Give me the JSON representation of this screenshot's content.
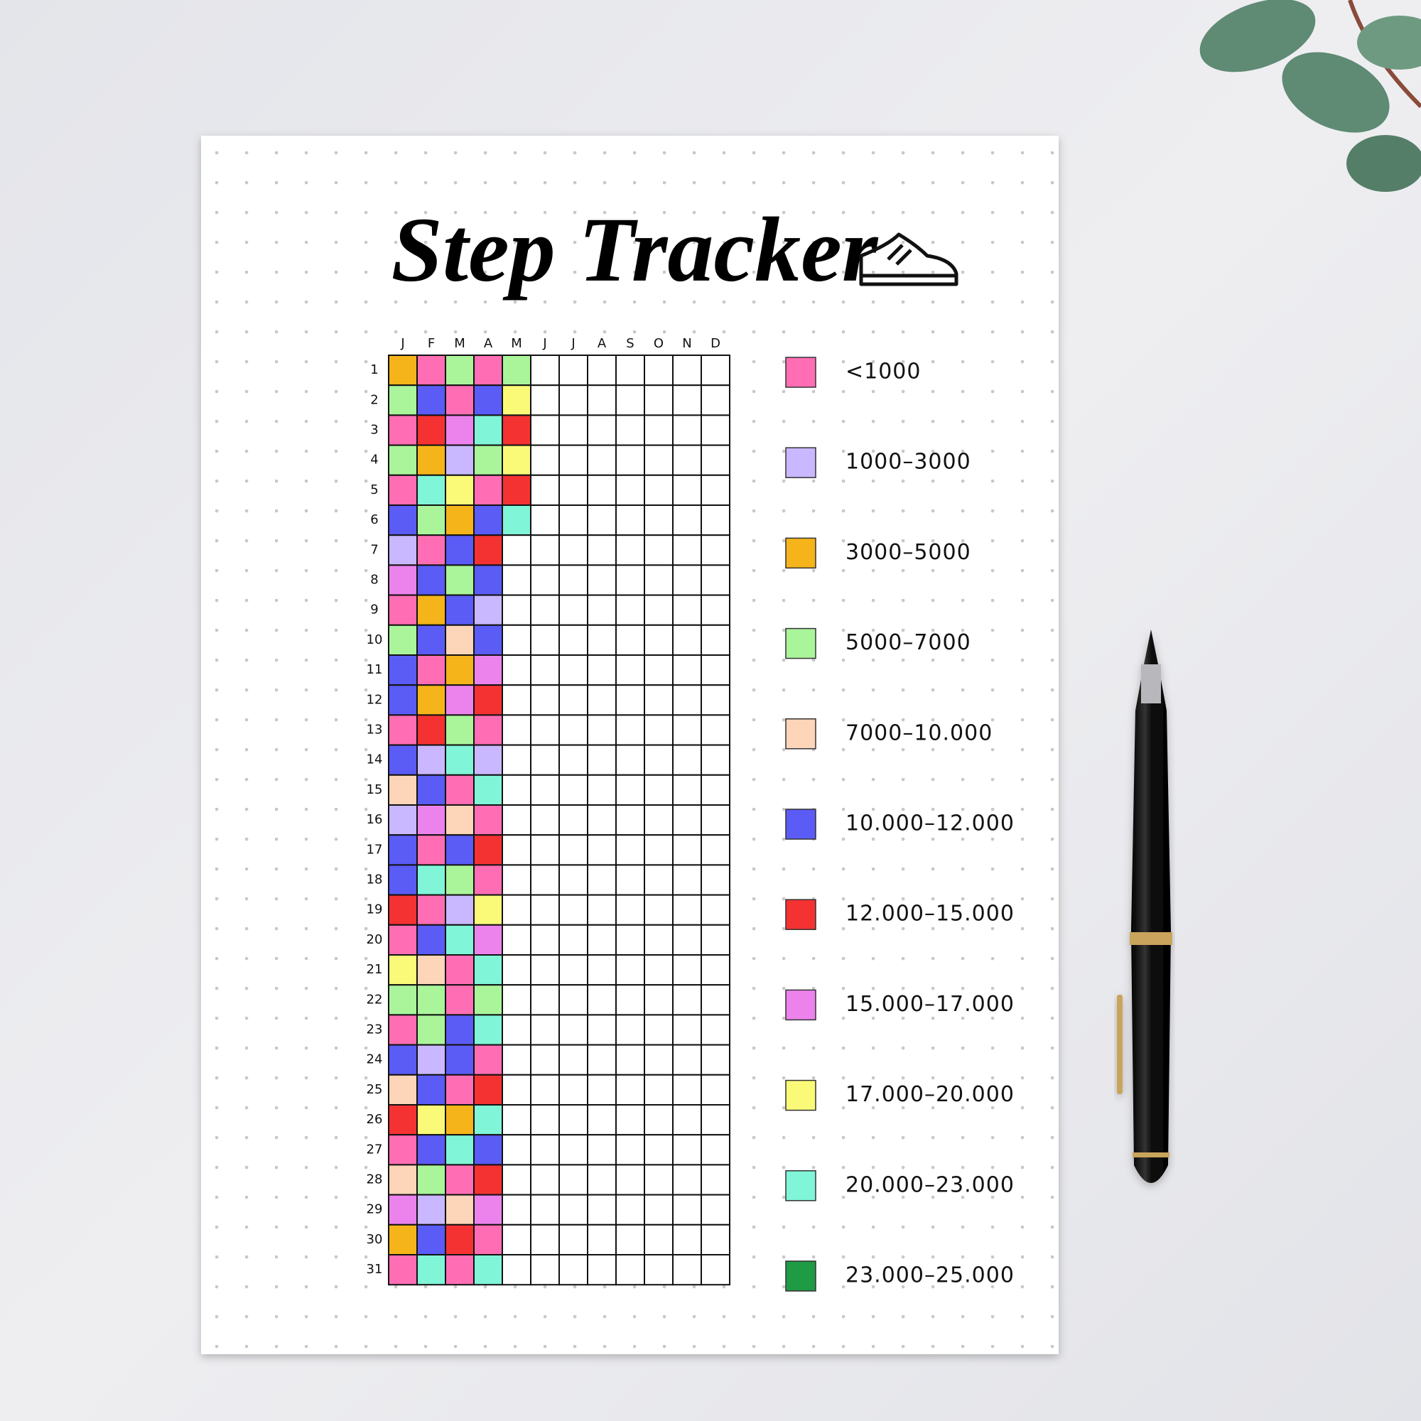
{
  "title": "Step Tracker",
  "months": [
    "J",
    "F",
    "M",
    "A",
    "M",
    "J",
    "J",
    "A",
    "S",
    "O",
    "N",
    "D"
  ],
  "days": [
    1,
    2,
    3,
    4,
    5,
    6,
    7,
    8,
    9,
    10,
    11,
    12,
    13,
    14,
    15,
    16,
    17,
    18,
    19,
    20,
    21,
    22,
    23,
    24,
    25,
    26,
    27,
    28,
    29,
    30,
    31
  ],
  "legend": [
    {
      "label": "<1000",
      "color": "#ff6eb4"
    },
    {
      "label": "1000–3000",
      "color": "#c9b8ff"
    },
    {
      "label": "3000–5000",
      "color": "#f5b41a"
    },
    {
      "label": "5000–7000",
      "color": "#aaf59a"
    },
    {
      "label": "7000–10.000",
      "color": "#fdd5b8"
    },
    {
      "label": "10.000–12.000",
      "color": "#5b5bf5"
    },
    {
      "label": "12.000–15.000",
      "color": "#f53232"
    },
    {
      "label": "15.000–17.000",
      "color": "#ec82ec"
    },
    {
      "label": "17.000–20.000",
      "color": "#fafa78"
    },
    {
      "label": "20.000–23.000",
      "color": "#80f5d8"
    },
    {
      "label": "23.000–25.000",
      "color": "#1f9a45"
    }
  ],
  "cells": [
    [
      "#f5b41a",
      "#ff6eb4",
      "#aaf59a",
      "#ff6eb4",
      "#aaf59a"
    ],
    [
      "#aaf59a",
      "#5b5bf5",
      "#ff6eb4",
      "#5b5bf5",
      "#fafa78"
    ],
    [
      "#ff6eb4",
      "#f53232",
      "#ec82ec",
      "#80f5d8",
      "#f53232"
    ],
    [
      "#aaf59a",
      "#f5b41a",
      "#c9b8ff",
      "#aaf59a",
      "#fafa78"
    ],
    [
      "#ff6eb4",
      "#80f5d8",
      "#fafa78",
      "#ff6eb4",
      "#f53232"
    ],
    [
      "#5b5bf5",
      "#aaf59a",
      "#f5b41a",
      "#5b5bf5",
      "#80f5d8"
    ],
    [
      "#c9b8ff",
      "#ff6eb4",
      "#5b5bf5",
      "#f53232"
    ],
    [
      "#ec82ec",
      "#5b5bf5",
      "#aaf59a",
      "#5b5bf5"
    ],
    [
      "#ff6eb4",
      "#f5b41a",
      "#5b5bf5",
      "#c9b8ff"
    ],
    [
      "#aaf59a",
      "#5b5bf5",
      "#fdd5b8",
      "#5b5bf5"
    ],
    [
      "#5b5bf5",
      "#ff6eb4",
      "#f5b41a",
      "#ec82ec"
    ],
    [
      "#5b5bf5",
      "#f5b41a",
      "#ec82ec",
      "#f53232"
    ],
    [
      "#ff6eb4",
      "#f53232",
      "#aaf59a",
      "#ff6eb4"
    ],
    [
      "#5b5bf5",
      "#c9b8ff",
      "#80f5d8",
      "#c9b8ff"
    ],
    [
      "#fdd5b8",
      "#5b5bf5",
      "#ff6eb4",
      "#80f5d8"
    ],
    [
      "#c9b8ff",
      "#ec82ec",
      "#fdd5b8",
      "#ff6eb4"
    ],
    [
      "#5b5bf5",
      "#ff6eb4",
      "#5b5bf5",
      "#f53232"
    ],
    [
      "#5b5bf5",
      "#80f5d8",
      "#aaf59a",
      "#ff6eb4"
    ],
    [
      "#f53232",
      "#ff6eb4",
      "#c9b8ff",
      "#fafa78"
    ],
    [
      "#ff6eb4",
      "#5b5bf5",
      "#80f5d8",
      "#ec82ec"
    ],
    [
      "#fafa78",
      "#fdd5b8",
      "#ff6eb4",
      "#80f5d8"
    ],
    [
      "#aaf59a",
      "#aaf59a",
      "#ff6eb4",
      "#aaf59a"
    ],
    [
      "#ff6eb4",
      "#aaf59a",
      "#5b5bf5",
      "#80f5d8"
    ],
    [
      "#5b5bf5",
      "#c9b8ff",
      "#5b5bf5",
      "#ff6eb4"
    ],
    [
      "#fdd5b8",
      "#5b5bf5",
      "#ff6eb4",
      "#f53232"
    ],
    [
      "#f53232",
      "#fafa78",
      "#f5b41a",
      "#80f5d8"
    ],
    [
      "#ff6eb4",
      "#5b5bf5",
      "#80f5d8",
      "#5b5bf5"
    ],
    [
      "#fdd5b8",
      "#aaf59a",
      "#ff6eb4",
      "#f53232"
    ],
    [
      "#ec82ec",
      "#c9b8ff",
      "#fdd5b8",
      "#ec82ec"
    ],
    [
      "#f5b41a",
      "#5b5bf5",
      "#f53232",
      "#ff6eb4"
    ],
    [
      "#ff6eb4",
      "#80f5d8",
      "#ff6eb4",
      "#80f5d8"
    ]
  ]
}
